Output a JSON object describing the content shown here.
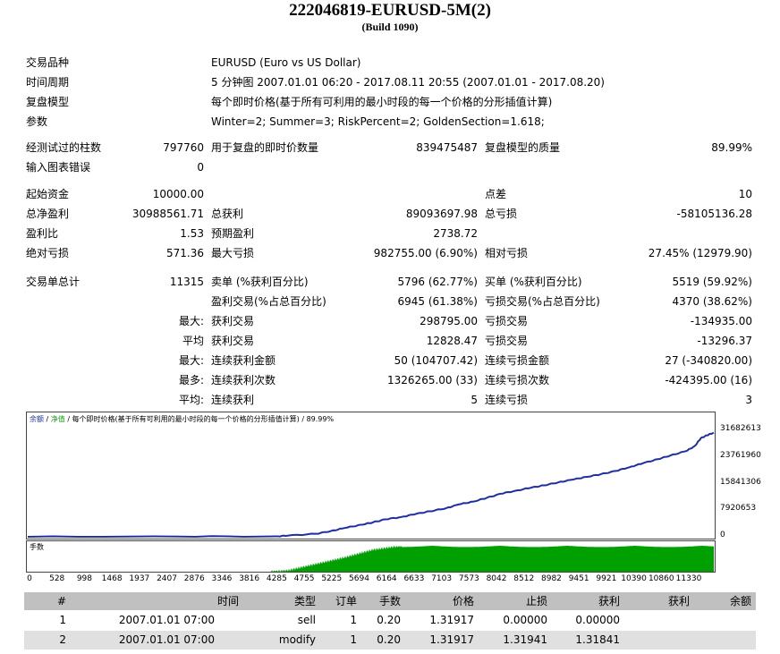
{
  "report": {
    "title": "222046819-EURUSD-5M(2)",
    "build": "(Build 1090)"
  },
  "info": {
    "symbol_label": "交易品种",
    "symbol_value": "EURUSD (Euro vs US Dollar)",
    "period_label": "时间周期",
    "period_value": "5 分钟图 2007.01.01 06:20 - 2017.08.11 20:55 (2007.01.01 - 2017.08.20)",
    "model_label": "复盘模型",
    "model_value": "每个即时价格(基于所有可利用的最小时段的每一个价格的分形插值计算)",
    "params_label": "参数",
    "params_value": "Winter=2; Summer=3; RiskPercent=2; GoldenSection=1.618;"
  },
  "stats": {
    "bars_label": "经测试过的柱数",
    "bars_value": "797760",
    "ticks_label": "用于复盘的即时价数量",
    "ticks_value": "839475487",
    "quality_label": "复盘模型的质量",
    "quality_value": "89.99%",
    "errors_label": "输入图表错误",
    "errors_value": "0",
    "deposit_label": "起始资金",
    "deposit_value": "10000.00",
    "spread_label": "点差",
    "spread_value": "10",
    "net_label": "总净盈利",
    "net_value": "30988561.71",
    "gross_profit_label": "总获利",
    "gross_profit_value": "89093697.98",
    "gross_loss_label": "总亏损",
    "gross_loss_value": "-58105136.28",
    "pf_label": "盈利比",
    "pf_value": "1.53",
    "payoff_label": "预期盈利",
    "payoff_value": "2738.72",
    "abs_dd_label": "绝对亏损",
    "abs_dd_value": "571.36",
    "max_dd_label": "最大亏损",
    "max_dd_value": "982755.00 (6.90%)",
    "rel_dd_label": "相对亏损",
    "rel_dd_value": "27.45% (12979.90)",
    "total_trades_label": "交易单总计",
    "total_trades_value": "11315",
    "short_label": "卖单 (%获利百分比)",
    "short_value": "5796 (62.77%)",
    "long_label": "买单 (%获利百分比)",
    "long_value": "5519 (59.92%)",
    "profit_trades_label": "盈利交易(%占总百分比)",
    "profit_trades_value": "6945 (61.38%)",
    "loss_trades_label": "亏损交易(%占总百分比)",
    "loss_trades_value": "4370 (38.62%)",
    "largest_prefix": "最大:",
    "largest_profit_label": "获利交易",
    "largest_profit_value": "298795.00",
    "largest_loss_label": "亏损交易",
    "largest_loss_value": "-134935.00",
    "average_prefix": "平均",
    "average_profit_label": "获利交易",
    "average_profit_value": "12828.47",
    "average_loss_label": "亏损交易",
    "average_loss_value": "-13296.37",
    "max_prefix": "最大:",
    "max_cons_wins_label": "连续获利金额",
    "max_cons_wins_value": "50 (104707.42)",
    "max_cons_losses_label": "连续亏损金额",
    "max_cons_losses_value": "27 (-340820.00)",
    "maximal_prefix": "最多:",
    "maximal_cons_profit_label": "连续获利次数",
    "maximal_cons_profit_value": "1326265.00 (33)",
    "maximal_cons_loss_label": "连续亏损次数",
    "maximal_cons_loss_value": "-424395.00 (16)",
    "avg_prefix": "平均:",
    "avg_cons_wins_label": "连续获利",
    "avg_cons_wins_value": "5",
    "avg_cons_losses_label": "连续亏损",
    "avg_cons_losses_value": "3"
  },
  "chart_legend": {
    "balance": "余额",
    "sep1": " / ",
    "equity": "净值",
    "rest": " / 每个即时价格(基于所有可利用的最小时段的每一个价格的分形插值计算) / 89.99%"
  },
  "volume_label": "手数",
  "colors": {
    "balance": "#1f2fa0",
    "equity": "#16a016",
    "volume": "#00a000"
  },
  "chart_data": {
    "type": "line",
    "title": "",
    "xlabel": "",
    "ylabel": "",
    "x_ticks": [
      "0",
      "528",
      "998",
      "1468",
      "1937",
      "2407",
      "2876",
      "3346",
      "3816",
      "4285",
      "4755",
      "5225",
      "5694",
      "6164",
      "6633",
      "7103",
      "7573",
      "8042",
      "8512",
      "8982",
      "9451",
      "9921",
      "10390",
      "10860",
      "11330"
    ],
    "y_ticks": [
      "31682613",
      "23761960",
      "15841306",
      "7920653",
      "0"
    ],
    "ylim": [
      0,
      31682613
    ],
    "xlim": [
      0,
      11315
    ],
    "legend": "top-left",
    "series": [
      {
        "name": "余额",
        "x": [
          0,
          2500,
          4100,
          4285,
          4755,
          5000,
          5225,
          5500,
          5694,
          5900,
          6164,
          6400,
          6633,
          6900,
          7103,
          7350,
          7573,
          7800,
          8042,
          8300,
          8512,
          8750,
          8982,
          9200,
          9451,
          9700,
          9921,
          10150,
          10390,
          10600,
          10860,
          11000,
          11100,
          11200,
          11315
        ],
        "y": [
          0,
          40000,
          120000,
          350000,
          900000,
          1700000,
          2600000,
          3600000,
          4300000,
          5200000,
          5900000,
          6800000,
          7600000,
          8500000,
          9600000,
          10500000,
          11600000,
          12800000,
          13700000,
          14600000,
          15300000,
          16200000,
          17000000,
          17800000,
          18600000,
          19600000,
          20700000,
          21900000,
          23100000,
          24200000,
          25500000,
          27000000,
          29300000,
          30200000,
          30988562
        ]
      }
    ],
    "volume": {
      "x": [
        0,
        4000,
        4285,
        4755,
        5225,
        5694,
        6164,
        6633,
        7103,
        7573,
        8042,
        8512,
        8982,
        9451,
        9921,
        10390,
        10860,
        11315
      ],
      "y": [
        0,
        0,
        0.05,
        0.3,
        0.55,
        0.85,
        1,
        1,
        1,
        1,
        1,
        1,
        1,
        1,
        1,
        1,
        1,
        1
      ]
    }
  },
  "trades": {
    "headers": [
      "#",
      "时间",
      "类型",
      "订单",
      "手数",
      "价格",
      "止损",
      "获利",
      "获利",
      "余额"
    ],
    "rows": [
      [
        "1",
        "2007.01.01 07:00",
        "sell",
        "1",
        "0.20",
        "1.31917",
        "0.00000",
        "0.00000",
        "",
        ""
      ],
      [
        "2",
        "2007.01.01 07:00",
        "modify",
        "1",
        "0.20",
        "1.31917",
        "1.31941",
        "1.31841",
        "",
        ""
      ]
    ]
  }
}
